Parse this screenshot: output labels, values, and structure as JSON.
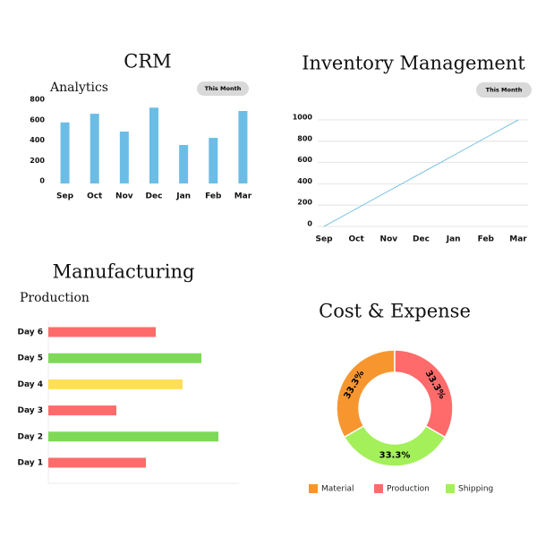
{
  "chart_data": [
    {
      "type": "bar",
      "title": "CRM",
      "subtitle": "Analytics",
      "button": "This Month",
      "categories": [
        "Sep",
        "Oct",
        "Nov",
        "Dec",
        "Jan",
        "Feb",
        "Mar"
      ],
      "values": [
        600,
        685,
        510,
        745,
        378,
        448,
        712
      ],
      "color": "#6bbde6",
      "ylim": [
        0,
        800
      ],
      "yticks": [
        0,
        200,
        400,
        600,
        800
      ],
      "grid": false
    },
    {
      "type": "line",
      "title": "Inventory Management",
      "button": "This Month",
      "categories": [
        "Sep",
        "Oct",
        "Nov",
        "Dec",
        "Jan",
        "Feb",
        "Mar"
      ],
      "values": [
        0,
        167,
        333,
        500,
        667,
        833,
        1000
      ],
      "color": "#7cc4e6",
      "ylim": [
        0,
        1000
      ],
      "yticks": [
        0,
        200,
        400,
        600,
        800,
        1000
      ],
      "grid": true
    },
    {
      "type": "barh",
      "title": "Manufacturing",
      "subtitle": "Production",
      "categories": [
        "Day 1",
        "Day 2",
        "Day 3",
        "Day 4",
        "Day 5",
        "Day 6"
      ],
      "values": [
        109,
        190,
        76,
        150,
        171,
        120
      ],
      "colors": [
        "#ff6b6b",
        "#7ed957",
        "#ff6b6b",
        "#ffde59",
        "#7ed957",
        "#ff6b6b"
      ],
      "xlim": [
        0,
        213
      ]
    },
    {
      "type": "donut",
      "title": "Cost & Expense",
      "categories": [
        "Material",
        "Production",
        "Shipping"
      ],
      "values": [
        33.3,
        33.3,
        33.3
      ],
      "value_labels": [
        "33.3%",
        "33.3%",
        "33.3%"
      ],
      "colors": [
        "#f7962f",
        "#ff6b6b",
        "#a3f05a"
      ]
    }
  ]
}
